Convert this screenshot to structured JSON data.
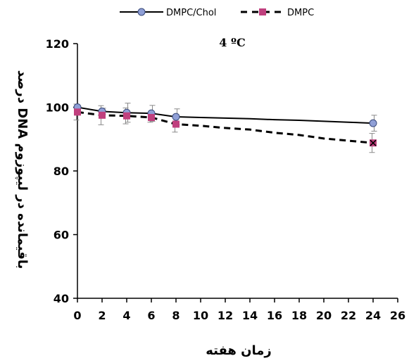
{
  "chart_data": {
    "type": "line",
    "title": "",
    "annotation": "4 ºC",
    "xlabel": "زمان هفته",
    "ylabel": "درصد DNA باقیمانده در لیپوزوم",
    "xlim": [
      0,
      26
    ],
    "ylim": [
      40,
      120
    ],
    "x_ticks": [
      "0",
      "2",
      "4",
      "6",
      "8",
      "10",
      "12",
      "14",
      "16",
      "18",
      "20",
      "22",
      "24",
      "26"
    ],
    "y_ticks": [
      "40",
      "60",
      "80",
      "100",
      "120"
    ],
    "grid": false,
    "legend_position": "top",
    "series": [
      {
        "name": "DMPC/Chol",
        "style": "solid",
        "color": "#000000",
        "marker": "circle",
        "marker_color": "#8f9fd6",
        "marked_x": [
          0,
          2,
          4,
          6,
          8,
          24
        ],
        "x": [
          0,
          2,
          4,
          6,
          8,
          10,
          12,
          14,
          16,
          18,
          20,
          22,
          24
        ],
        "y": [
          100,
          98.7,
          98.3,
          98.1,
          97.0,
          96.8,
          96.6,
          96.4,
          96.1,
          95.9,
          95.6,
          95.3,
          95.0
        ],
        "error": [
          0,
          1.0,
          3.0,
          2.5,
          2.5,
          0,
          0,
          0,
          0,
          0,
          0,
          0,
          2.5
        ]
      },
      {
        "name": "DMPC",
        "style": "dashed",
        "color": "#000000",
        "marker": "square",
        "marker_color": "#c0407e",
        "marked_x": [
          0,
          2,
          4,
          6,
          8,
          24
        ],
        "x": [
          0,
          2,
          4,
          6,
          8,
          10,
          12,
          14,
          16,
          18,
          20,
          22,
          24
        ],
        "y": [
          98.5,
          97.5,
          97.3,
          96.8,
          94.7,
          94.2,
          93.5,
          93.0,
          92.0,
          91.3,
          90.2,
          89.5,
          88.8
        ],
        "error": [
          2.5,
          3.0,
          2.5,
          1.5,
          2.5,
          0,
          0,
          0,
          0,
          0,
          0,
          0,
          3.0
        ]
      }
    ]
  }
}
